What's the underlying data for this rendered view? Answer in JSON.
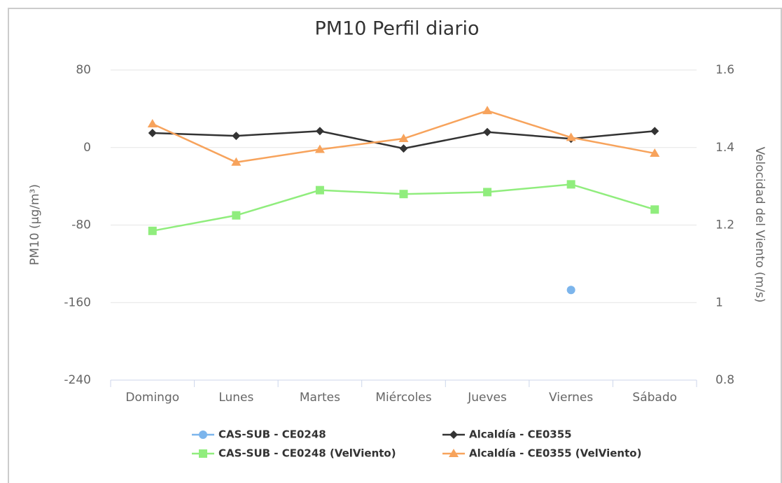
{
  "chart_data": {
    "type": "line",
    "title": "PM10 Perfil diario",
    "categories": [
      "Domingo",
      "Lunes",
      "Martes",
      "Miércoles",
      "Jueves",
      "Viernes",
      "Sábado"
    ],
    "ylabel": "PM10 (µg/m³)",
    "y2label": "Velocidad del Viento (m/s)",
    "ylim": [
      -240,
      80
    ],
    "yticks": [
      -240,
      -160,
      -80,
      0,
      80
    ],
    "y2lim": [
      0.8,
      1.6
    ],
    "y2ticks": [
      0.8,
      1,
      1.2,
      1.4,
      1.6
    ],
    "grid": true,
    "series": [
      {
        "name": "CAS-SUB - CE0248",
        "color": "#7cb5ec",
        "marker": "circle",
        "values": [
          null,
          null,
          null,
          null,
          null,
          -147,
          null
        ]
      },
      {
        "name": "Alcaldía - CE0355",
        "color": "#333333",
        "marker": "diamond",
        "values": [
          15,
          12,
          17,
          -1,
          16,
          9,
          17
        ]
      },
      {
        "name": "CAS-SUB - CE0248 (VelViento)",
        "color": "#90ed7d",
        "marker": "square",
        "axis": "y2",
        "values": [
          1.185,
          1.225,
          1.29,
          1.28,
          1.285,
          1.305,
          1.24
        ]
      },
      {
        "name": "Alcaldía - CE0355 (VelViento)",
        "color": "#f7a35c",
        "marker": "triangle",
        "axis": "y2",
        "values": [
          1.461,
          1.362,
          1.395,
          1.423,
          1.495,
          1.426,
          1.385
        ]
      }
    ]
  }
}
